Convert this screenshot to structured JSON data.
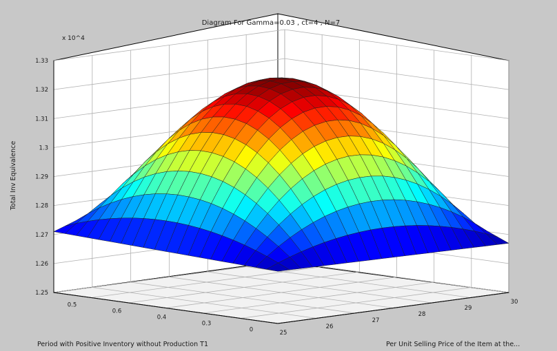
{
  "chart_data": {
    "type": "surface",
    "title": "Diagram For Gamma=0.03 , ct=4 , N=7",
    "zlabel": "Total Inv Equivalence",
    "zexponent": "x 10^4",
    "xlabel": "Period with Positive Inventory without Production  T1",
    "ylabel": "Per Unit Selling Price of the Item at the...",
    "zticks": [
      "1.25",
      "1.26",
      "1.27",
      "1.28",
      "1.29",
      "1.3",
      "1.31",
      "1.32",
      "1.33"
    ],
    "zlim": [
      1.25,
      1.33
    ],
    "xticks": [
      "0.5",
      "0.6",
      "0.4",
      "0.3",
      "0"
    ],
    "yticks": [
      "25",
      "26",
      "27",
      "28",
      "29",
      "30"
    ],
    "colormap": "jet",
    "grid": true,
    "surface": {
      "peak": 1.322,
      "corners": {
        "left": 1.271,
        "front": 1.268,
        "right": 1.267,
        "back": 1.3
      },
      "description": "inverted paraboloid"
    }
  },
  "colors": {
    "figure_bg": "#c8c8c8",
    "axes_bg": "#ffffff",
    "grid": "#b0b0b0",
    "axis_line": "#000000",
    "text": "#1a1a1a"
  }
}
